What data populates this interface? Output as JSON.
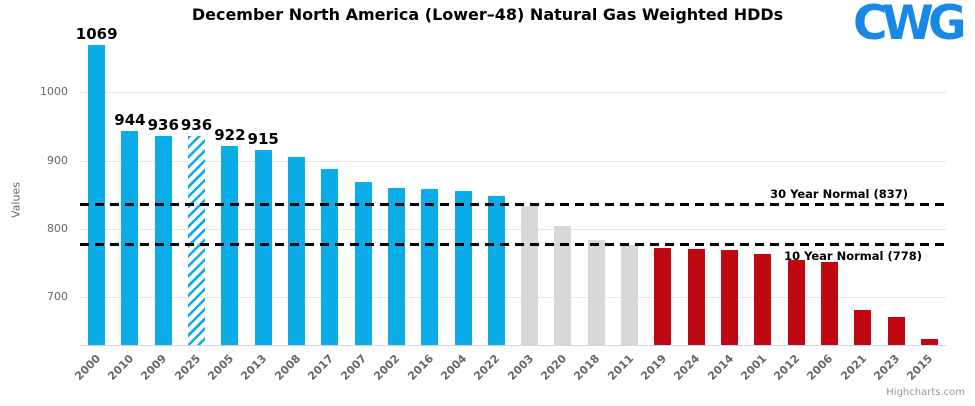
{
  "header": {
    "title": "December North America (Lower–48) Natural Gas Weighted HDDs",
    "logo_text": "CWG",
    "logo_color": "#1788e8"
  },
  "credit": "Highcharts.com",
  "chart_data": {
    "type": "bar",
    "title": "December North America (Lower–48) Natural Gas Weighted HDDs",
    "xlabel": "",
    "ylabel": "Values",
    "ylim": [
      630,
      1087
    ],
    "yticks": [
      700,
      800,
      900,
      1000
    ],
    "grid": true,
    "legend": "none",
    "colors": {
      "blue": "#0aade8",
      "gray": "#d8d8d8",
      "red": "#c00812"
    },
    "plot_lines": [
      {
        "value": 837,
        "label": "30 Year Normal (837)"
      },
      {
        "value": 778,
        "label": "10 Year Normal (778)"
      }
    ],
    "bars": [
      {
        "year": "2000",
        "value": 1069,
        "color": "blue",
        "label": "1069"
      },
      {
        "year": "2010",
        "value": 944,
        "color": "blue",
        "label": "944"
      },
      {
        "year": "2009",
        "value": 936,
        "color": "blue",
        "label": "936"
      },
      {
        "year": "2025",
        "value": 936,
        "color": "blue",
        "label": "936",
        "hatched": true
      },
      {
        "year": "2005",
        "value": 922,
        "color": "blue",
        "label": "922"
      },
      {
        "year": "2013",
        "value": 915,
        "color": "blue",
        "label": "915"
      },
      {
        "year": "2008",
        "value": 905,
        "color": "blue"
      },
      {
        "year": "2017",
        "value": 888,
        "color": "blue"
      },
      {
        "year": "2007",
        "value": 869,
        "color": "blue"
      },
      {
        "year": "2002",
        "value": 860,
        "color": "blue"
      },
      {
        "year": "2016",
        "value": 858,
        "color": "blue"
      },
      {
        "year": "2004",
        "value": 856,
        "color": "blue"
      },
      {
        "year": "2022",
        "value": 849,
        "color": "blue"
      },
      {
        "year": "2003",
        "value": 833,
        "color": "gray"
      },
      {
        "year": "2020",
        "value": 804,
        "color": "gray"
      },
      {
        "year": "2018",
        "value": 784,
        "color": "gray"
      },
      {
        "year": "2011",
        "value": 777,
        "color": "gray"
      },
      {
        "year": "2019",
        "value": 772,
        "color": "red"
      },
      {
        "year": "2024",
        "value": 771,
        "color": "red"
      },
      {
        "year": "2014",
        "value": 769,
        "color": "red"
      },
      {
        "year": "2001",
        "value": 764,
        "color": "red"
      },
      {
        "year": "2012",
        "value": 755,
        "color": "red"
      },
      {
        "year": "2006",
        "value": 751,
        "color": "red"
      },
      {
        "year": "2021",
        "value": 681,
        "color": "red"
      },
      {
        "year": "2023",
        "value": 671,
        "color": "red"
      },
      {
        "year": "2015",
        "value": 639,
        "color": "red"
      }
    ]
  }
}
